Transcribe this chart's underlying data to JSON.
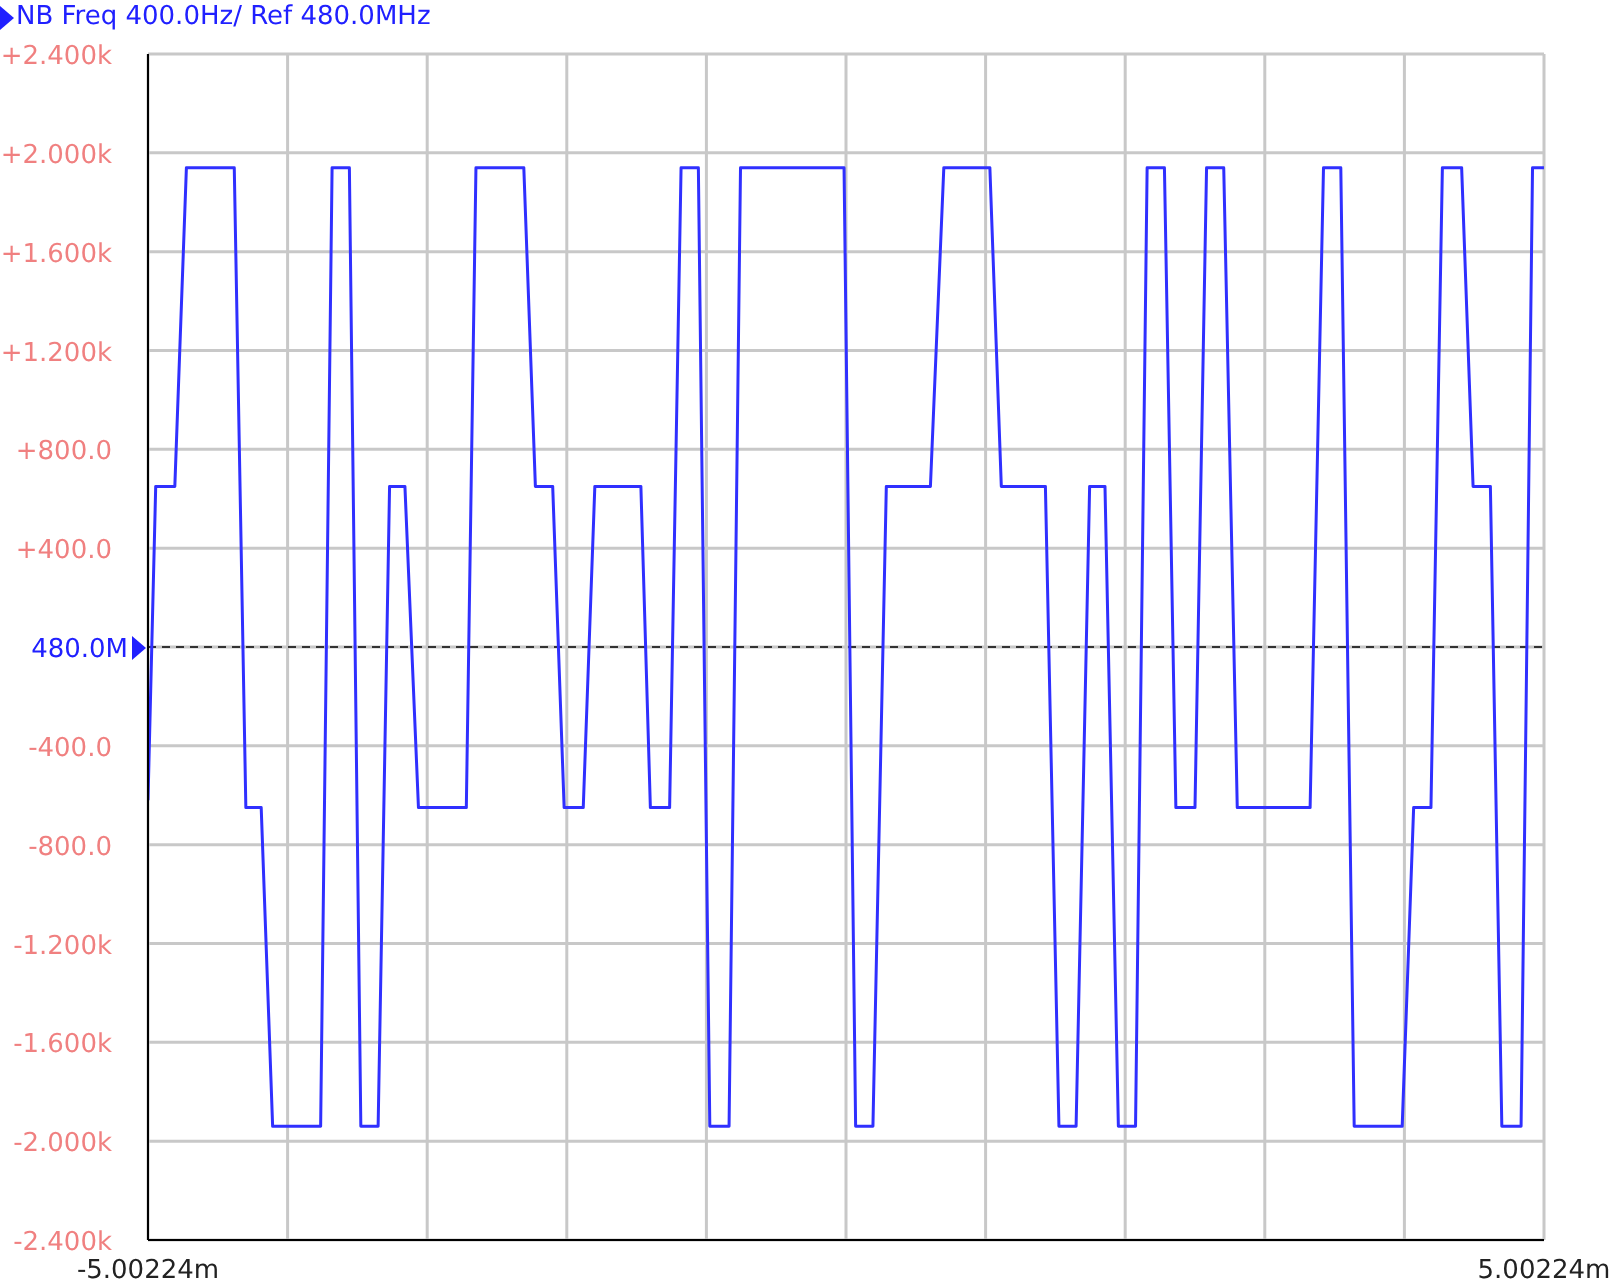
{
  "chart_data": {
    "type": "line",
    "title": "NB Freq 400.0Hz/ Ref 480.0MHz",
    "x": [
      -5.00224,
      -4.947,
      -4.81,
      -4.727,
      -4.384,
      -4.301,
      -4.191,
      -4.109,
      -3.765,
      -3.683,
      -3.559,
      -3.477,
      -3.353,
      -3.271,
      -3.161,
      -3.064,
      -2.721,
      -2.652,
      -2.309,
      -2.226,
      -2.102,
      -2.02,
      -1.883,
      -1.8,
      -1.47,
      -1.402,
      -1.264,
      -1.182,
      -1.058,
      -0.976,
      -0.838,
      -0.756,
      -0.014,
      0.069,
      0.193,
      0.289,
      0.605,
      0.701,
      1.031,
      1.113,
      1.429,
      1.526,
      1.649,
      1.746,
      1.856,
      1.952,
      2.075,
      2.158,
      2.282,
      2.364,
      2.501,
      2.584,
      2.707,
      2.804,
      3.326,
      3.422,
      3.546,
      3.642,
      3.986,
      4.068,
      4.192,
      4.274,
      4.412,
      4.494,
      4.618,
      4.7,
      4.838,
      4.92,
      5.002
    ],
    "series": [
      {
        "color": "#3030ff",
        "values": [
          -620,
          650,
          650,
          1940,
          1940,
          -650,
          -650,
          -1940,
          -1940,
          1940,
          1940,
          -1940,
          -1940,
          650,
          650,
          -650,
          -650,
          1940,
          1940,
          650,
          650,
          -650,
          -650,
          650,
          650,
          -650,
          -650,
          1940,
          1940,
          -1940,
          -1940,
          1940,
          1940,
          -1940,
          -1940,
          650,
          650,
          1940,
          1940,
          650,
          650,
          -1940,
          -1940,
          650,
          650,
          -1940,
          -1940,
          1940,
          1940,
          -650,
          -650,
          1940,
          1940,
          -650,
          -650,
          1940,
          1940,
          -1940,
          -1940,
          -650,
          -650,
          1940,
          1940,
          650,
          650,
          -1940,
          -1940,
          1940,
          1940
        ]
      }
    ],
    "xlim": [
      -5.00224,
      5.00224
    ],
    "xticks": [
      {
        "value": -5.00224,
        "label": "-5.00224m"
      },
      {
        "value": -4.00179,
        "label": null
      },
      {
        "value": -3.00134,
        "label": null
      },
      {
        "value": -2.0009,
        "label": null
      },
      {
        "value": -1.00045,
        "label": null
      },
      {
        "value": 0,
        "label": null
      },
      {
        "value": 1.00045,
        "label": null
      },
      {
        "value": 2.0009,
        "label": null
      },
      {
        "value": 3.00134,
        "label": null
      },
      {
        "value": 4.00179,
        "label": null
      },
      {
        "value": 5.00224,
        "label": "5.00224m"
      }
    ],
    "ylim": [
      -2400,
      2400
    ],
    "yticks": [
      {
        "value": 2400,
        "label": "+2.400k"
      },
      {
        "value": 2000,
        "label": "+2.000k"
      },
      {
        "value": 1600,
        "label": "+1.600k"
      },
      {
        "value": 1200,
        "label": "+1.200k"
      },
      {
        "value": 800,
        "label": "+800.0"
      },
      {
        "value": 400,
        "label": "+400.0"
      },
      {
        "value": 0,
        "label": null
      },
      {
        "value": -400,
        "label": "-400.0"
      },
      {
        "value": -800,
        "label": "-800.0"
      },
      {
        "value": -1200,
        "label": "-1.200k"
      },
      {
        "value": -1600,
        "label": "-1.600k"
      },
      {
        "value": -2000,
        "label": "-2.000k"
      },
      {
        "value": -2400,
        "label": "-2.400k"
      }
    ],
    "ref_lines": [
      {
        "axis": "y",
        "value": 0,
        "label": "480.0M",
        "color": "#333333",
        "line_style": "dashed"
      }
    ],
    "grid": true,
    "marker": "none",
    "line_style": "solid"
  }
}
